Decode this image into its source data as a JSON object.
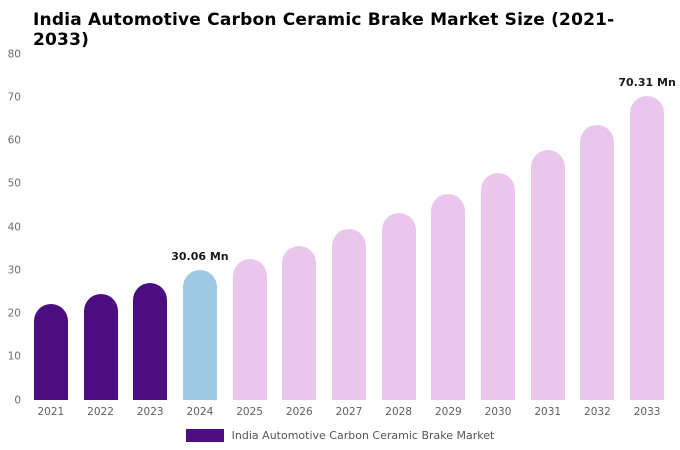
{
  "title": "India Automotive Carbon Ceramic Brake Market Size (2021-2033)",
  "legend": {
    "label": "India Automotive Carbon Ceramic Brake Market",
    "color": "#4b0d80"
  },
  "colors": {
    "historical_purple": "#4b0d80",
    "current_year_blue": "#9ec9e2",
    "forecast_pink": "#eac6ec"
  },
  "chart_data": {
    "type": "bar",
    "title": "India Automotive Carbon Ceramic Brake Market Size (2021-2033)",
    "xlabel": "",
    "ylabel": "",
    "ylim": [
      0,
      80
    ],
    "yticks": [
      0,
      10,
      20,
      30,
      40,
      50,
      60,
      70,
      80
    ],
    "grid": false,
    "legend_position": "bottom",
    "categories": [
      "2021",
      "2022",
      "2023",
      "2024",
      "2025",
      "2026",
      "2027",
      "2028",
      "2029",
      "2030",
      "2031",
      "2032",
      "2033"
    ],
    "values": [
      22.1,
      24.4,
      27.0,
      30.06,
      32.5,
      35.5,
      39.5,
      43.2,
      47.6,
      52.5,
      57.7,
      63.5,
      70.31
    ],
    "bar_colors": [
      "#4b0d80",
      "#4b0d80",
      "#4b0d80",
      "#9ec9e2",
      "#eac6ec",
      "#eac6ec",
      "#eac6ec",
      "#eac6ec",
      "#eac6ec",
      "#eac6ec",
      "#eac6ec",
      "#eac6ec",
      "#eac6ec"
    ],
    "annotations": [
      {
        "category": "2024",
        "text": "30.06 Mn"
      },
      {
        "category": "2033",
        "text": "70.31 Mn"
      }
    ]
  }
}
